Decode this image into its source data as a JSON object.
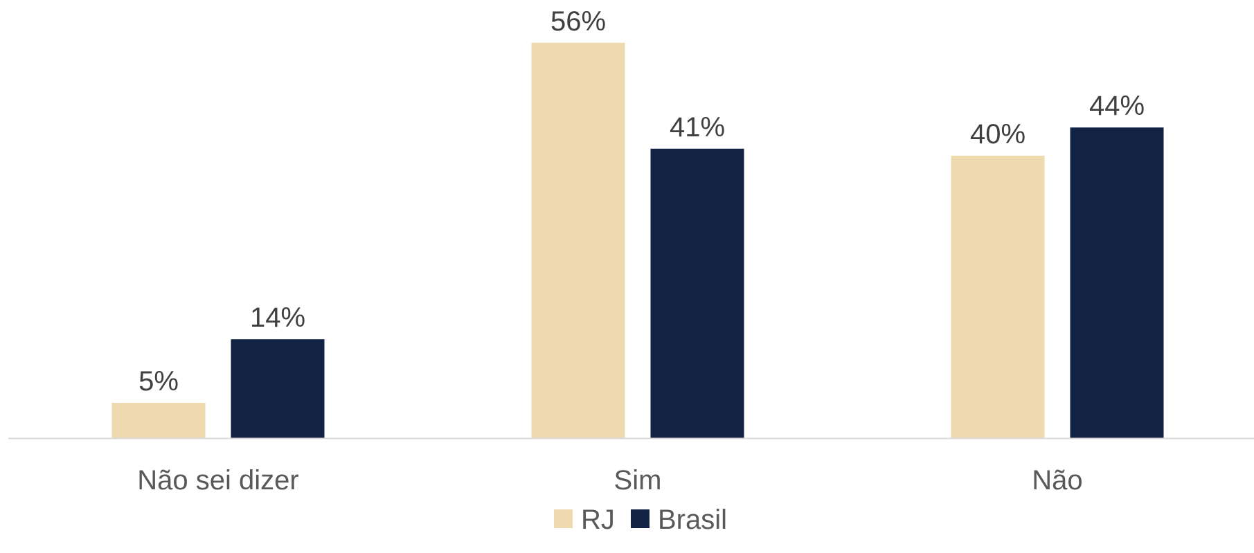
{
  "chart_data": {
    "type": "bar",
    "title": "",
    "xlabel": "",
    "ylabel": "",
    "categories": [
      "Não sei dizer",
      "Sim",
      "Não"
    ],
    "series": [
      {
        "name": "RJ",
        "color": "#EFD9AE",
        "values": [
          5,
          56,
          40
        ],
        "labels": [
          "5%",
          "56%",
          "40%"
        ]
      },
      {
        "name": "Brasil",
        "color": "#122244",
        "values": [
          14,
          41,
          44
        ],
        "labels": [
          "14%",
          "41%",
          "44%"
        ]
      }
    ],
    "unit": "%",
    "ylim": [
      0,
      60
    ],
    "grid": false,
    "legend_position": "bottom",
    "axis_color": "#D9D9D9"
  }
}
